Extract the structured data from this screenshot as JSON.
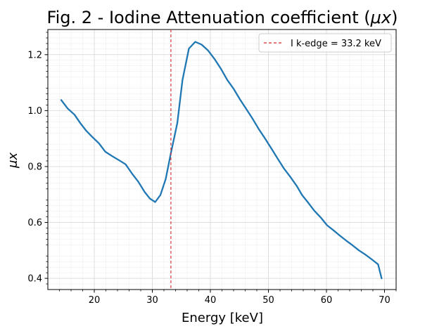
{
  "chart_data": {
    "type": "line",
    "title": "Fig. 2 - Iodine Attenuation coefficient (",
    "title_math": "μx",
    "title_close": ")",
    "xlabel": "Energy [keV]",
    "ylabel": "μx",
    "xlim": [
      12,
      72
    ],
    "ylim": [
      0.36,
      1.29
    ],
    "xticks": [
      20,
      30,
      40,
      50,
      60,
      70
    ],
    "yticks": [
      0.4,
      0.6,
      0.8,
      1.0,
      1.2
    ],
    "xtick_labels": [
      "20",
      "30",
      "40",
      "50",
      "60",
      "70"
    ],
    "ytick_labels": [
      "0.4",
      "0.6",
      "0.8",
      "1.0",
      "1.2"
    ],
    "grid": true,
    "minor_grid": true,
    "legend_position": "top-right",
    "series": [
      {
        "color": "#1f77b4",
        "x": [
          14.3,
          15.4,
          16.6,
          17.6,
          18.6,
          19.7,
          20.8,
          21.9,
          23.0,
          24.3,
          25.4,
          26.5,
          27.6,
          28.7,
          29.6,
          30.5,
          31.4,
          32.3,
          33.2,
          34.3,
          35.2,
          36.3,
          37.4,
          38.5,
          39.6,
          40.7,
          41.8,
          42.9,
          44.0,
          45.1,
          46.2,
          47.3,
          48.3,
          49.4,
          50.5,
          51.6,
          52.7,
          53.8,
          54.9,
          55.8,
          56.8,
          57.9,
          59.0,
          60.1,
          61.2,
          62.3,
          63.4,
          64.5,
          65.6,
          66.7,
          67.8,
          68.9,
          69.5
        ],
        "y": [
          1.038,
          1.008,
          0.985,
          0.955,
          0.928,
          0.905,
          0.883,
          0.853,
          0.838,
          0.822,
          0.808,
          0.775,
          0.745,
          0.708,
          0.685,
          0.673,
          0.698,
          0.755,
          0.848,
          0.955,
          1.11,
          1.222,
          1.246,
          1.236,
          1.215,
          1.185,
          1.15,
          1.11,
          1.078,
          1.04,
          1.005,
          0.97,
          0.935,
          0.901,
          0.865,
          0.828,
          0.792,
          0.762,
          0.73,
          0.698,
          0.672,
          0.642,
          0.618,
          0.59,
          0.572,
          0.553,
          0.535,
          0.518,
          0.5,
          0.485,
          0.468,
          0.45,
          0.4
        ]
      }
    ],
    "reference_lines": [
      {
        "x": 33.2,
        "label": "I k-edge = 33.2 keV",
        "color": "#d62728",
        "style": "dashed"
      }
    ]
  }
}
